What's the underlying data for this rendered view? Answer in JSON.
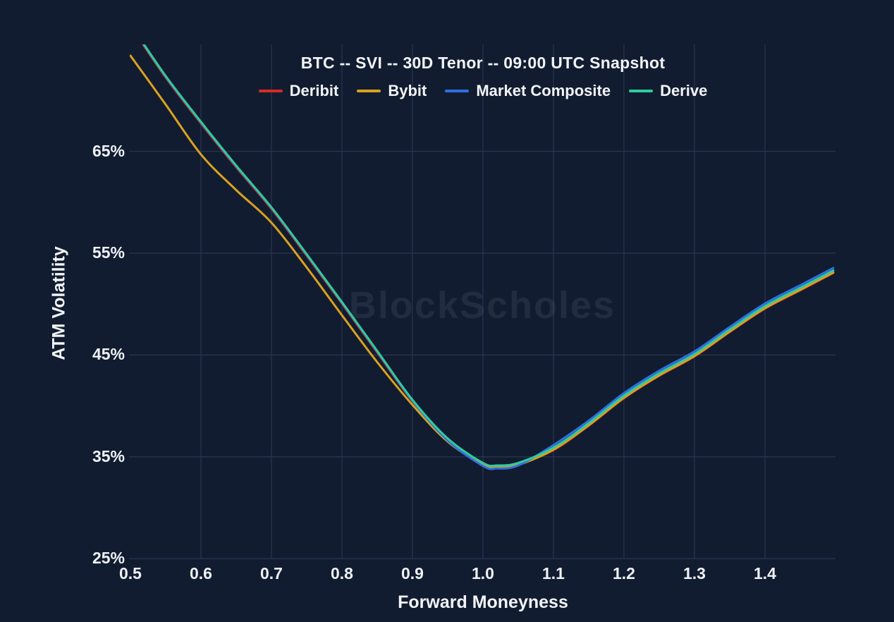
{
  "title": "BTC -- SVI -- 30D Tenor -- 09:00 UTC Snapshot",
  "watermark": "BlockScholes",
  "colors": {
    "background": "#121c30",
    "grid": "#283553",
    "text": "#f2f4f8",
    "deribit": "#d62c22",
    "bybit": "#d9a21f",
    "market_composite": "#2f6fe0",
    "derive": "#2ecc9e"
  },
  "chart_data": {
    "type": "line",
    "title": "BTC -- SVI -- 30D Tenor -- 09:00 UTC Snapshot",
    "xlabel": "Forward Moneyness",
    "ylabel": "ATM Volatility",
    "xlim": [
      0.5,
      1.5
    ],
    "ylim": [
      24.8,
      75.5
    ],
    "grid": true,
    "legend_position": "top",
    "x_ticks": [
      0.5,
      0.6,
      0.7,
      0.8,
      0.9,
      1.0,
      1.1,
      1.2,
      1.3,
      1.4
    ],
    "x_tick_labels": [
      "0.5",
      "0.6",
      "0.7",
      "0.8",
      "0.9",
      "1.0",
      "1.1",
      "1.2",
      "1.3",
      "1.4"
    ],
    "x_gridlines": [
      0.6,
      0.7,
      0.8,
      0.9,
      1.0,
      1.1,
      1.2,
      1.3,
      1.4
    ],
    "y_ticks": [
      25,
      35,
      45,
      55,
      65
    ],
    "y_tick_labels": [
      "25%",
      "35%",
      "45%",
      "55%",
      "65%"
    ],
    "x": [
      0.5,
      0.55,
      0.6,
      0.65,
      0.7,
      0.75,
      0.8,
      0.85,
      0.9,
      0.95,
      1.0,
      1.02,
      1.05,
      1.1,
      1.15,
      1.2,
      1.25,
      1.3,
      1.35,
      1.4,
      1.45,
      1.497
    ],
    "series": [
      {
        "name": "Deribit",
        "color": "#d62c22",
        "values": [
          77.35,
          72.25,
          67.75,
          63.45,
          59.35,
          54.75,
          50.05,
          45.25,
          40.45,
          36.65,
          34.3,
          34.05,
          34.3,
          35.65,
          38.05,
          40.75,
          42.95,
          44.85,
          47.25,
          49.55,
          51.35,
          53.05
        ]
      },
      {
        "name": "Bybit",
        "color": "#d9a21f",
        "values": [
          74.4,
          69.6,
          64.7,
          61.2,
          58.0,
          53.6,
          48.9,
          44.3,
          40.1,
          36.5,
          34.2,
          33.95,
          34.2,
          35.7,
          38.1,
          40.8,
          43.0,
          44.9,
          47.3,
          49.6,
          51.4,
          53.1
        ]
      },
      {
        "name": "Market Composite",
        "color": "#2f6fe0",
        "values": [
          77.45,
          72.35,
          67.85,
          63.55,
          59.45,
          54.85,
          50.15,
          45.35,
          40.5,
          36.6,
          34.1,
          33.85,
          34.15,
          36.15,
          38.55,
          41.25,
          43.45,
          45.35,
          47.75,
          50.05,
          51.85,
          53.55
        ]
      },
      {
        "name": "Derive",
        "color": "#2ecc9e",
        "values": [
          77.5,
          72.4,
          67.9,
          63.6,
          59.5,
          54.9,
          50.2,
          45.4,
          40.6,
          36.8,
          34.4,
          34.15,
          34.4,
          35.9,
          38.3,
          41.0,
          43.2,
          45.1,
          47.5,
          49.8,
          51.6,
          53.3
        ]
      }
    ]
  }
}
